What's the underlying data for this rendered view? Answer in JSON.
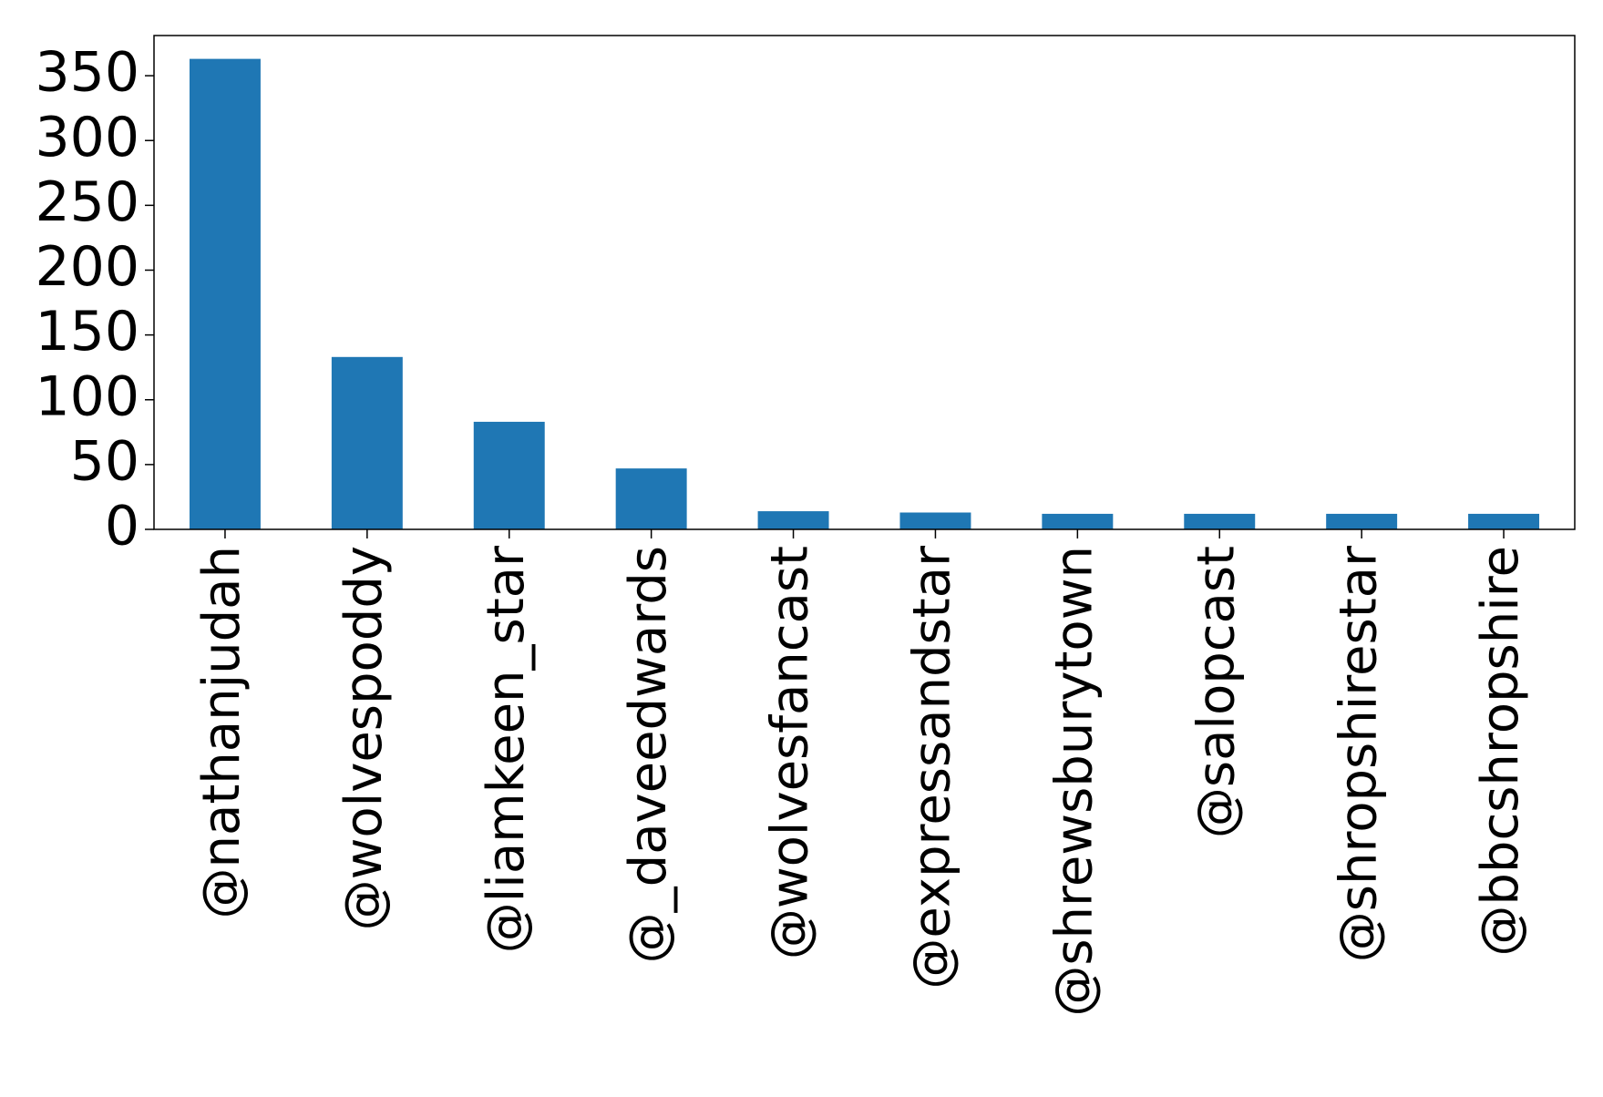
{
  "chart_data": {
    "type": "bar",
    "categories": [
      "@nathanjudah",
      "@wolvespoddy",
      "@liamkeen_star",
      "@_daveedwards",
      "@wolvesfancast",
      "@expressandstar",
      "@shrewsburytown",
      "@salopcast",
      "@shropshirestar",
      "@bbcshropshire"
    ],
    "values": [
      363,
      133,
      83,
      47,
      14,
      13,
      12,
      12,
      12,
      12
    ],
    "color": "#1f77b4",
    "ylim": [
      0,
      381
    ],
    "yticks": [
      0,
      50,
      100,
      150,
      200,
      250,
      300,
      350
    ]
  }
}
